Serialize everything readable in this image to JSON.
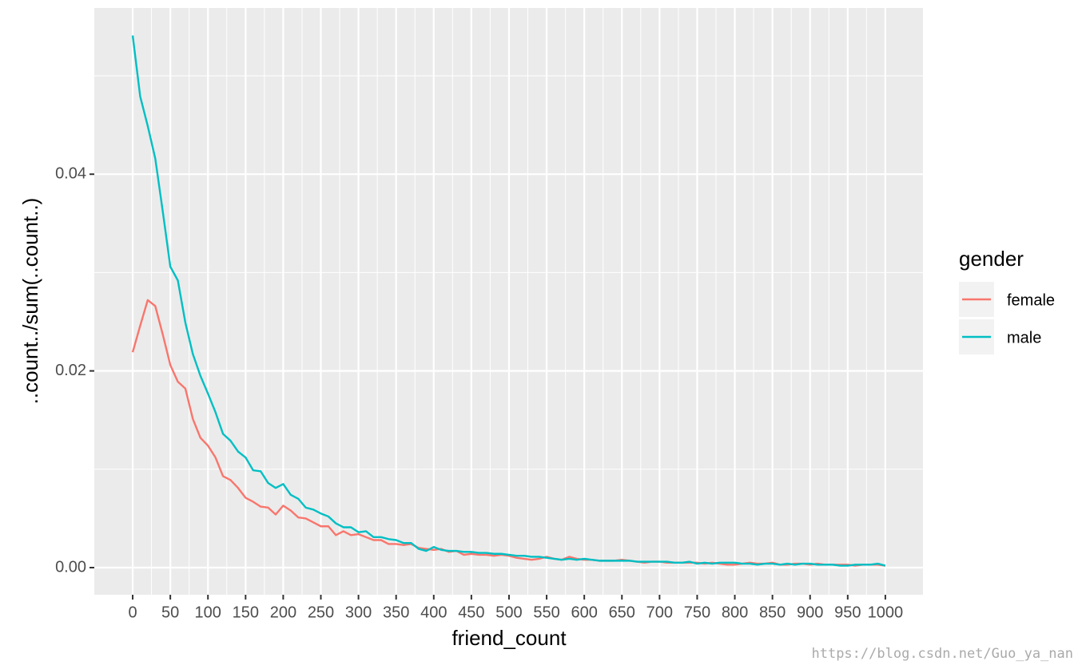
{
  "chart_data": {
    "type": "line",
    "x_label": "friend_count",
    "y_label": "..count../sum(..count..)",
    "legend_title": "gender",
    "legend_position": "right",
    "grid": true,
    "watermark": "https://blog.csdn.net/Guo_ya_nan",
    "xlim": [
      -51,
      1050
    ],
    "ylim": [
      -0.00276,
      0.0569
    ],
    "xticks": [
      0,
      50,
      100,
      150,
      200,
      250,
      300,
      350,
      400,
      450,
      500,
      550,
      600,
      650,
      700,
      750,
      800,
      850,
      900,
      950,
      1000
    ],
    "yticks": [
      {
        "value": 0,
        "label": "0.00"
      },
      {
        "value": 0.02,
        "label": "0.02"
      },
      {
        "value": 0.04,
        "label": "0.04"
      }
    ],
    "x": [
      0,
      10,
      20,
      30,
      40,
      50,
      60,
      70,
      80,
      90,
      100,
      110,
      120,
      130,
      140,
      150,
      160,
      170,
      180,
      190,
      200,
      210,
      220,
      230,
      240,
      250,
      260,
      270,
      280,
      290,
      300,
      310,
      320,
      330,
      340,
      350,
      360,
      370,
      380,
      390,
      400,
      410,
      420,
      430,
      440,
      450,
      460,
      470,
      480,
      490,
      500,
      510,
      520,
      530,
      540,
      550,
      560,
      570,
      580,
      590,
      600,
      610,
      620,
      630,
      640,
      650,
      660,
      670,
      680,
      690,
      700,
      710,
      720,
      730,
      740,
      750,
      760,
      770,
      780,
      790,
      800,
      810,
      820,
      830,
      840,
      850,
      860,
      870,
      880,
      890,
      900,
      910,
      920,
      930,
      940,
      950,
      960,
      970,
      980,
      990,
      1000
    ],
    "series": [
      {
        "name": "female",
        "color": "#F8766D",
        "values": [
          0.0219,
          0.0246,
          0.0272,
          0.0266,
          0.0237,
          0.0206,
          0.0189,
          0.0182,
          0.0151,
          0.0132,
          0.0124,
          0.0112,
          0.0093,
          0.0089,
          0.0081,
          0.0071,
          0.0067,
          0.0062,
          0.0061,
          0.0054,
          0.0063,
          0.0058,
          0.0051,
          0.005,
          0.0046,
          0.0042,
          0.0042,
          0.0033,
          0.0037,
          0.0033,
          0.0034,
          0.0031,
          0.0028,
          0.0028,
          0.0024,
          0.0024,
          0.0023,
          0.0024,
          0.002,
          0.0019,
          0.0018,
          0.0019,
          0.0016,
          0.0017,
          0.0013,
          0.0014,
          0.0013,
          0.0013,
          0.0012,
          0.0013,
          0.0012,
          0.001,
          0.0009,
          0.0008,
          0.0009,
          0.0011,
          0.0009,
          0.0008,
          0.0011,
          0.0009,
          0.0008,
          0.0008,
          0.0007,
          0.0007,
          0.0007,
          0.0008,
          0.0007,
          0.0006,
          0.0005,
          0.0006,
          0.0006,
          0.0005,
          0.0005,
          0.0005,
          0.0005,
          0.0005,
          0.0004,
          0.0005,
          0.0004,
          0.0003,
          0.0003,
          0.0004,
          0.0005,
          0.0004,
          0.0004,
          0.0005,
          0.0003,
          0.0003,
          0.0004,
          0.0004,
          0.0003,
          0.0004,
          0.0003,
          0.0003,
          0.0003,
          0.0003,
          0.0002,
          0.0003,
          0.0003,
          0.0003,
          0.0002
        ]
      },
      {
        "name": "male",
        "color": "#00BFC4",
        "values": [
          0.0541,
          0.0479,
          0.0449,
          0.0416,
          0.0362,
          0.0306,
          0.0292,
          0.0249,
          0.0217,
          0.0195,
          0.0177,
          0.0158,
          0.0136,
          0.0129,
          0.0118,
          0.0112,
          0.0099,
          0.0098,
          0.0086,
          0.0081,
          0.0085,
          0.0074,
          0.007,
          0.0061,
          0.0059,
          0.0055,
          0.0052,
          0.0045,
          0.0041,
          0.0041,
          0.0036,
          0.0037,
          0.0031,
          0.0031,
          0.0029,
          0.0028,
          0.0025,
          0.0025,
          0.0019,
          0.0017,
          0.0021,
          0.0018,
          0.0017,
          0.0017,
          0.0016,
          0.0016,
          0.0015,
          0.0015,
          0.0014,
          0.0014,
          0.0013,
          0.0012,
          0.0012,
          0.0011,
          0.0011,
          0.001,
          0.0009,
          0.0008,
          0.0009,
          0.0008,
          0.0009,
          0.0008,
          0.0007,
          0.0007,
          0.0007,
          0.0007,
          0.0007,
          0.0006,
          0.0006,
          0.0006,
          0.0006,
          0.0006,
          0.0005,
          0.0005,
          0.0006,
          0.0004,
          0.0005,
          0.0004,
          0.0005,
          0.0005,
          0.0005,
          0.0004,
          0.0004,
          0.0003,
          0.0004,
          0.0004,
          0.0003,
          0.0004,
          0.0003,
          0.0004,
          0.0004,
          0.0003,
          0.0003,
          0.0003,
          0.0002,
          0.0002,
          0.0003,
          0.0003,
          0.0003,
          0.0004,
          0.0002
        ]
      }
    ]
  }
}
